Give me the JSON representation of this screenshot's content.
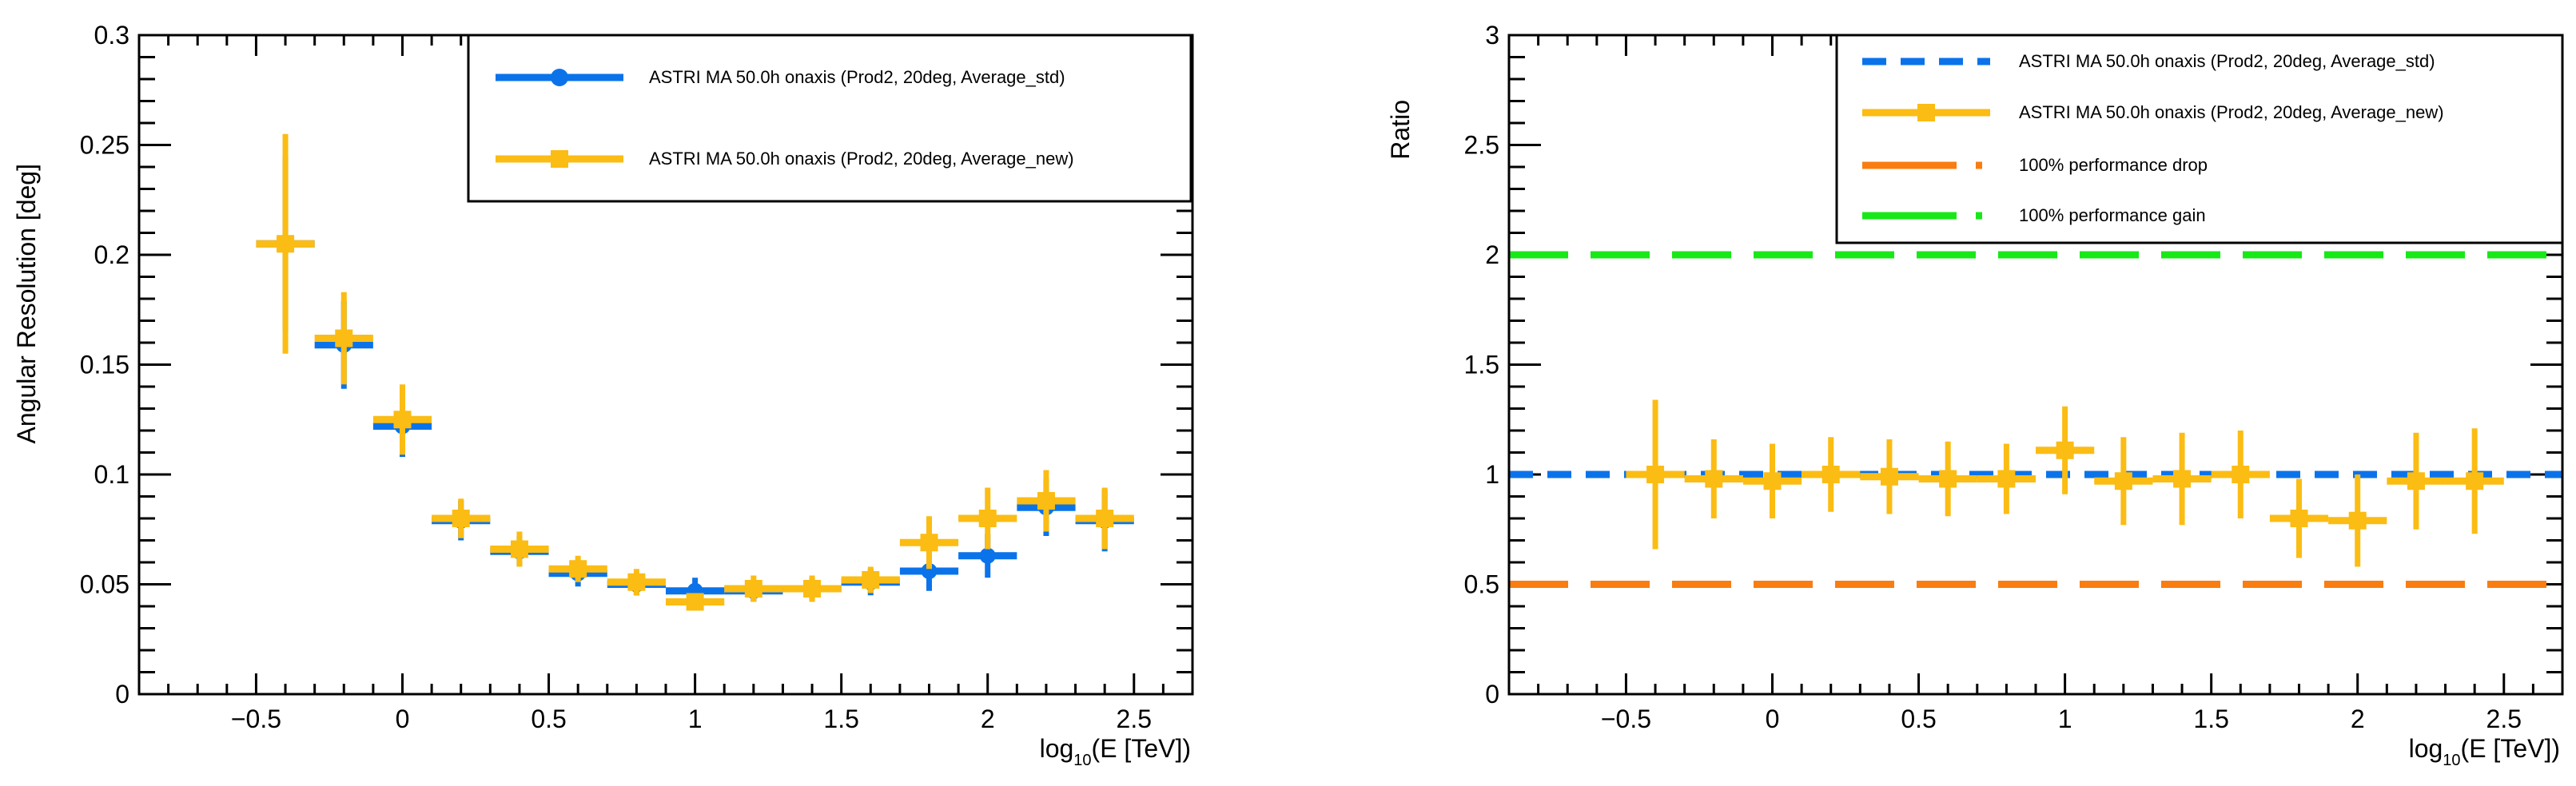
{
  "colors": {
    "std": "#0b73ea",
    "new": "#fbbc13",
    "drop": "#f97d10",
    "gain": "#18e818",
    "axis": "#000000"
  },
  "chart_data": [
    {
      "type": "scatter",
      "id": "left",
      "ylabel": "Angular Resolution [deg]",
      "xlabel_main": "log",
      "xlabel_sub": "10",
      "xlabel_tail": "(E [TeV])",
      "xlim": [
        -0.9,
        2.7
      ],
      "ylim": [
        0,
        0.3
      ],
      "x_ticks": [
        -0.5,
        0,
        0.5,
        1,
        1.5,
        2,
        2.5
      ],
      "x_tick_labels": [
        "−0.5",
        "0",
        "0.5",
        "1",
        "1.5",
        "2",
        "2.5"
      ],
      "y_ticks": [
        0,
        0.05,
        0.1,
        0.15,
        0.2,
        0.25,
        0.3
      ],
      "y_tick_labels": [
        "0",
        "0.05",
        "0.1",
        "0.15",
        "0.2",
        "0.25",
        "0.3"
      ],
      "legend": [
        {
          "label": "ASTRI MA 50.0h onaxis (Prod2, 20deg, Average_std)",
          "series": "std"
        },
        {
          "label": "ASTRI MA 50.0h onaxis (Prod2, 20deg, Average_new)",
          "series": "new"
        }
      ],
      "series": [
        {
          "name": "Average_std",
          "key": "std",
          "x": [
            -0.4,
            -0.2,
            0,
            0.2,
            0.4,
            0.6,
            0.8,
            1.0,
            1.2,
            1.4,
            1.6,
            1.8,
            2.0,
            2.2,
            2.4
          ],
          "y": [
            0.205,
            0.159,
            0.122,
            0.079,
            0.065,
            0.055,
            0.05,
            0.047,
            0.047,
            0.048,
            0.051,
            0.056,
            0.063,
            0.085,
            0.079
          ],
          "yerr": [
            0.04,
            0.02,
            0.014,
            0.009,
            0.007,
            0.006,
            0.005,
            0.006,
            0.005,
            0.005,
            0.006,
            0.009,
            0.01,
            0.013,
            0.014
          ],
          "xerr": 0.1
        },
        {
          "name": "Average_new",
          "key": "new",
          "x": [
            -0.4,
            -0.2,
            0,
            0.2,
            0.4,
            0.6,
            0.8,
            1.0,
            1.2,
            1.4,
            1.6,
            1.8,
            2.0,
            2.2,
            2.4
          ],
          "y": [
            0.205,
            0.162,
            0.125,
            0.08,
            0.066,
            0.057,
            0.051,
            0.042,
            0.048,
            0.048,
            0.052,
            0.069,
            0.08,
            0.088,
            0.08
          ],
          "yerr": [
            0.05,
            0.021,
            0.016,
            0.009,
            0.008,
            0.006,
            0.006,
            0.004,
            0.006,
            0.006,
            0.006,
            0.012,
            0.014,
            0.014,
            0.014
          ],
          "xerr": 0.1
        }
      ]
    },
    {
      "type": "scatter",
      "id": "right",
      "ylabel": "Ratio",
      "xlabel_main": "log",
      "xlabel_sub": "10",
      "xlabel_tail": "(E [TeV])",
      "xlim": [
        -0.9,
        2.7
      ],
      "ylim": [
        0,
        3
      ],
      "x_ticks": [
        -0.5,
        0,
        0.5,
        1,
        1.5,
        2,
        2.5
      ],
      "x_tick_labels": [
        "−0.5",
        "0",
        "0.5",
        "1",
        "1.5",
        "2",
        "2.5"
      ],
      "y_ticks": [
        0,
        0.5,
        1,
        1.5,
        2,
        2.5,
        3
      ],
      "y_tick_labels": [
        "0",
        "0.5",
        "1",
        "1.5",
        "2",
        "2.5",
        "3"
      ],
      "legend": [
        {
          "label": "ASTRI MA 50.0h onaxis (Prod2, 20deg, Average_std)",
          "series": "std"
        },
        {
          "label": "ASTRI MA 50.0h onaxis (Prod2, 20deg, Average_new)",
          "series": "new"
        },
        {
          "label": "100% performance drop",
          "series": "drop"
        },
        {
          "label": "100% performance gain",
          "series": "gain"
        }
      ],
      "reference_lines": [
        {
          "name": "std",
          "y": 1,
          "key": "std"
        },
        {
          "name": "drop",
          "y": 0.5,
          "key": "drop"
        },
        {
          "name": "gain",
          "y": 2,
          "key": "gain"
        }
      ],
      "series": [
        {
          "name": "Average_new ratio",
          "key": "new",
          "x": [
            -0.4,
            -0.2,
            0,
            0.2,
            0.4,
            0.6,
            0.8,
            1.0,
            1.2,
            1.4,
            1.6,
            1.8,
            2.0,
            2.2,
            2.4
          ],
          "y": [
            1.0,
            0.98,
            0.97,
            1.0,
            0.99,
            0.98,
            0.98,
            1.11,
            0.97,
            0.98,
            1.0,
            0.8,
            0.79,
            0.97,
            0.97
          ],
          "yerr": [
            0.34,
            0.18,
            0.17,
            0.17,
            0.17,
            0.17,
            0.16,
            0.2,
            0.2,
            0.21,
            0.2,
            0.18,
            0.21,
            0.22,
            0.24
          ],
          "xerr": 0.1
        }
      ]
    }
  ]
}
